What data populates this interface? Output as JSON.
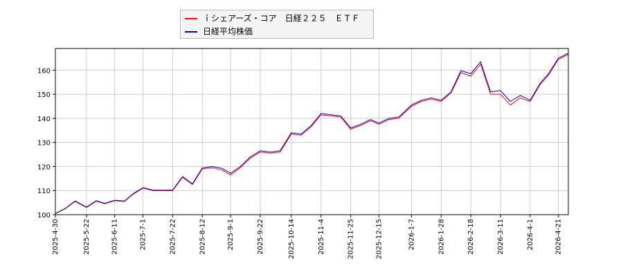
{
  "chart_data": {
    "type": "line",
    "title": "",
    "xlabel": "",
    "ylabel": "",
    "ylim": [
      100,
      169
    ],
    "yticks": [
      100,
      110,
      120,
      130,
      140,
      150,
      160
    ],
    "xticks": [
      "2025-4-30",
      "2025-5-22",
      "2025-6-11",
      "2025-7-1",
      "2025-7-22",
      "2025-8-12",
      "2025-9-1",
      "2025-9-22",
      "2025-10-14",
      "2025-11-4",
      "2025-11-25",
      "2025-12-15",
      "2026-1-7",
      "2026-1-28",
      "2026-2-18",
      "2026-3-11",
      "2026-4-1",
      "2026-4-21"
    ],
    "grid": true,
    "legend_position": "top-left",
    "x": [
      "2025-4-30",
      "2025-5-7",
      "2025-5-14",
      "2025-5-22",
      "2025-5-29",
      "2025-6-4",
      "2025-6-11",
      "2025-6-18",
      "2025-6-24",
      "2025-7-1",
      "2025-7-8",
      "2025-7-15",
      "2025-7-22",
      "2025-7-29",
      "2025-8-5",
      "2025-8-12",
      "2025-8-19",
      "2025-8-26",
      "2025-9-1",
      "2025-9-8",
      "2025-9-15",
      "2025-9-22",
      "2025-9-29",
      "2025-10-6",
      "2025-10-14",
      "2025-10-21",
      "2025-10-28",
      "2025-11-4",
      "2025-11-11",
      "2025-11-18",
      "2025-11-25",
      "2025-12-2",
      "2025-12-9",
      "2025-12-15",
      "2025-12-22",
      "2025-12-29",
      "2026-1-7",
      "2026-1-14",
      "2026-1-21",
      "2026-1-28",
      "2026-2-4",
      "2026-2-11",
      "2026-2-18",
      "2026-2-25",
      "2026-3-4",
      "2026-3-11",
      "2026-3-18",
      "2026-3-25",
      "2026-4-1",
      "2026-4-8",
      "2026-4-14",
      "2026-4-21",
      "2026-4-28"
    ],
    "series": [
      {
        "name": "ｉシェアーズ・コア　日経２２５　ＥＴＦ",
        "color": "#ff0000",
        "values": [
          100.4,
          102.5,
          105.5,
          103.0,
          105.6,
          104.5,
          105.8,
          105.5,
          108.5,
          111.0,
          110.0,
          110.0,
          110.0,
          115.5,
          112.5,
          119.0,
          119.5,
          118.5,
          116.5,
          119.5,
          123.5,
          126.0,
          125.5,
          126.0,
          133.5,
          133.0,
          136.5,
          141.5,
          141.0,
          140.5,
          135.5,
          137.0,
          139.0,
          137.5,
          139.5,
          140.0,
          145.0,
          147.0,
          148.0,
          147.0,
          150.5,
          159.0,
          157.5,
          162.5,
          150.0,
          150.0,
          145.5,
          148.5,
          147.0,
          154.0,
          158.0,
          164.5,
          166.5
        ]
      },
      {
        "name": "日経平均株価",
        "color": "#0000cc",
        "values": [
          100.5,
          102.6,
          105.7,
          103.2,
          105.8,
          104.7,
          106.0,
          105.7,
          108.7,
          111.2,
          110.2,
          110.2,
          110.2,
          115.8,
          112.8,
          119.4,
          120.0,
          119.2,
          117.2,
          120.0,
          124.0,
          126.5,
          126.0,
          126.5,
          134.0,
          133.5,
          137.0,
          142.0,
          141.5,
          141.0,
          136.0,
          137.5,
          139.5,
          138.0,
          140.0,
          140.5,
          145.5,
          147.5,
          148.5,
          147.5,
          151.0,
          159.8,
          158.5,
          163.5,
          151.0,
          151.5,
          147.0,
          149.5,
          147.5,
          154.5,
          158.5,
          165.0,
          167.0
        ]
      }
    ]
  }
}
